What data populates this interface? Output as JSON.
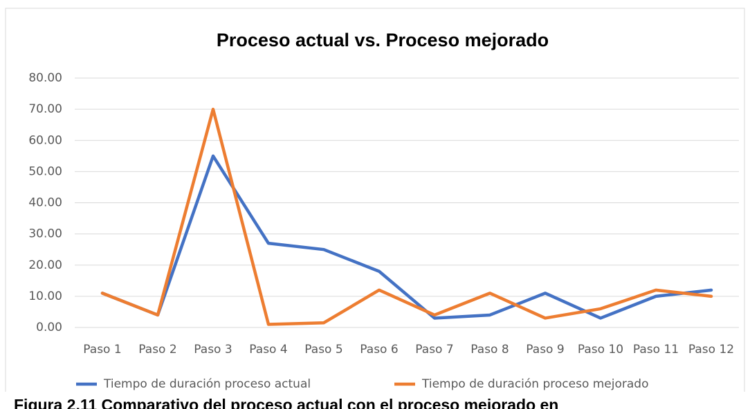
{
  "chart_data": {
    "type": "line",
    "title": "Proceso actual vs. Proceso mejorado",
    "categories": [
      "Paso 1",
      "Paso 2",
      "Paso 3",
      "Paso 4",
      "Paso 5",
      "Paso 6",
      "Paso 7",
      "Paso 8",
      "Paso 9",
      "Paso 10",
      "Paso 11",
      "Paso 12"
    ],
    "series": [
      {
        "name": "Tiempo de duración proceso actual",
        "color": "#4472c4",
        "values": [
          11,
          4,
          55,
          27,
          25,
          18,
          3,
          4,
          11,
          3,
          10,
          12
        ]
      },
      {
        "name": "Tiempo de duración proceso mejorado",
        "color": "#ed7d31",
        "values": [
          11,
          4,
          70,
          1,
          1.5,
          12,
          4,
          11,
          3,
          6,
          12,
          10
        ]
      }
    ],
    "ylim": [
      0,
      80
    ],
    "yticks": [
      {
        "value": 0,
        "label": "0.00"
      },
      {
        "value": 10,
        "label": "10.00"
      },
      {
        "value": 20,
        "label": "20.00"
      },
      {
        "value": 30,
        "label": "30.00"
      },
      {
        "value": 40,
        "label": "40.00"
      },
      {
        "value": 50,
        "label": "50.00"
      },
      {
        "value": 60,
        "label": "60.00"
      },
      {
        "value": 70,
        "label": "70.00"
      },
      {
        "value": 80,
        "label": "80.00"
      }
    ],
    "grid": true,
    "legend": "bottom",
    "caption": "Figura 2.11 Comparativo del proceso actual con el proceso mejorado en"
  }
}
